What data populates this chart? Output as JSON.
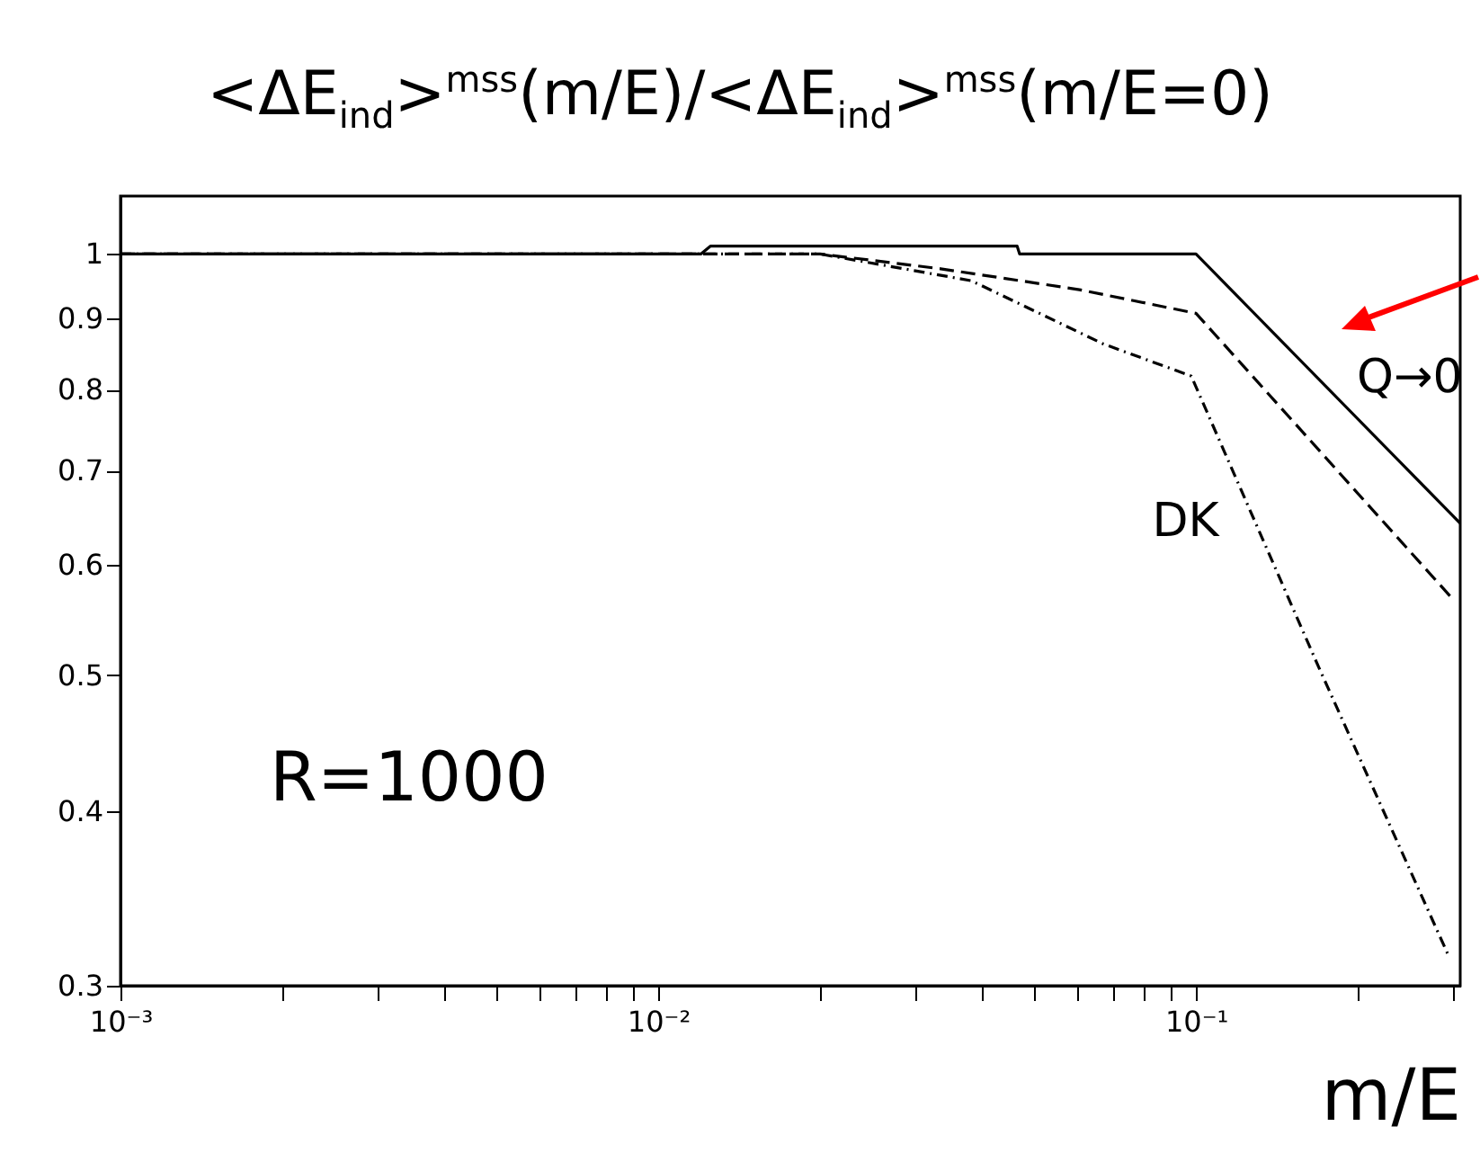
{
  "chart_data": {
    "type": "line",
    "title": "<ΔE$_{ind}$>$^{mss}$(m/E)/<ΔE$_{ind}$>$^{mss}$(m/E=0)",
    "xlabel": "m/E",
    "log": "xy",
    "grid": false,
    "marker": "none",
    "xlim": [
      0.001,
      0.31
    ],
    "ylim": [
      0.3,
      1.1
    ],
    "xticks": [
      {
        "value": 0.001,
        "label": "10⁻³"
      },
      {
        "value": 0.002,
        "label": null
      },
      {
        "value": 0.003,
        "label": null
      },
      {
        "value": 0.004,
        "label": null
      },
      {
        "value": 0.005,
        "label": null
      },
      {
        "value": 0.006,
        "label": null
      },
      {
        "value": 0.007,
        "label": null
      },
      {
        "value": 0.008,
        "label": null
      },
      {
        "value": 0.009,
        "label": null
      },
      {
        "value": 0.01,
        "label": "10⁻²"
      },
      {
        "value": 0.02,
        "label": null
      },
      {
        "value": 0.03,
        "label": null
      },
      {
        "value": 0.04,
        "label": null
      },
      {
        "value": 0.05,
        "label": null
      },
      {
        "value": 0.06,
        "label": null
      },
      {
        "value": 0.07,
        "label": null
      },
      {
        "value": 0.08,
        "label": null
      },
      {
        "value": 0.09,
        "label": null
      },
      {
        "value": 0.1,
        "label": "10⁻¹"
      },
      {
        "value": 0.2,
        "label": null
      },
      {
        "value": 0.3,
        "label": null
      }
    ],
    "yticks": [
      0.3,
      0.4,
      0.5,
      0.6,
      0.7,
      0.8,
      0.9,
      1
    ],
    "series": [
      {
        "name": "Q→0",
        "color": "#000000",
        "line_style": "solid",
        "x": [
          0.001,
          0.012,
          0.0125,
          0.0465,
          0.047,
          0.1,
          0.31
        ],
        "values": [
          1,
          1,
          1.013,
          1.013,
          1,
          1,
          0.642
        ]
      },
      {
        "color": "#000000",
        "line_style": "dashed",
        "x": [
          0.001,
          0.02,
          0.0335,
          0.0607,
          0.1,
          0.3
        ],
        "values": [
          1,
          1,
          0.976,
          0.943,
          0.907,
          0.567
        ]
      },
      {
        "name": "DK",
        "color": "#000000",
        "line_style": "dotted",
        "x": [
          0.001,
          0.02,
          0.0382,
          0.067,
          0.098,
          0.169,
          0.294
        ],
        "values": [
          1,
          1,
          0.957,
          0.863,
          0.818,
          0.507,
          0.316
        ]
      }
    ],
    "annotations": [
      "R=1000"
    ]
  }
}
